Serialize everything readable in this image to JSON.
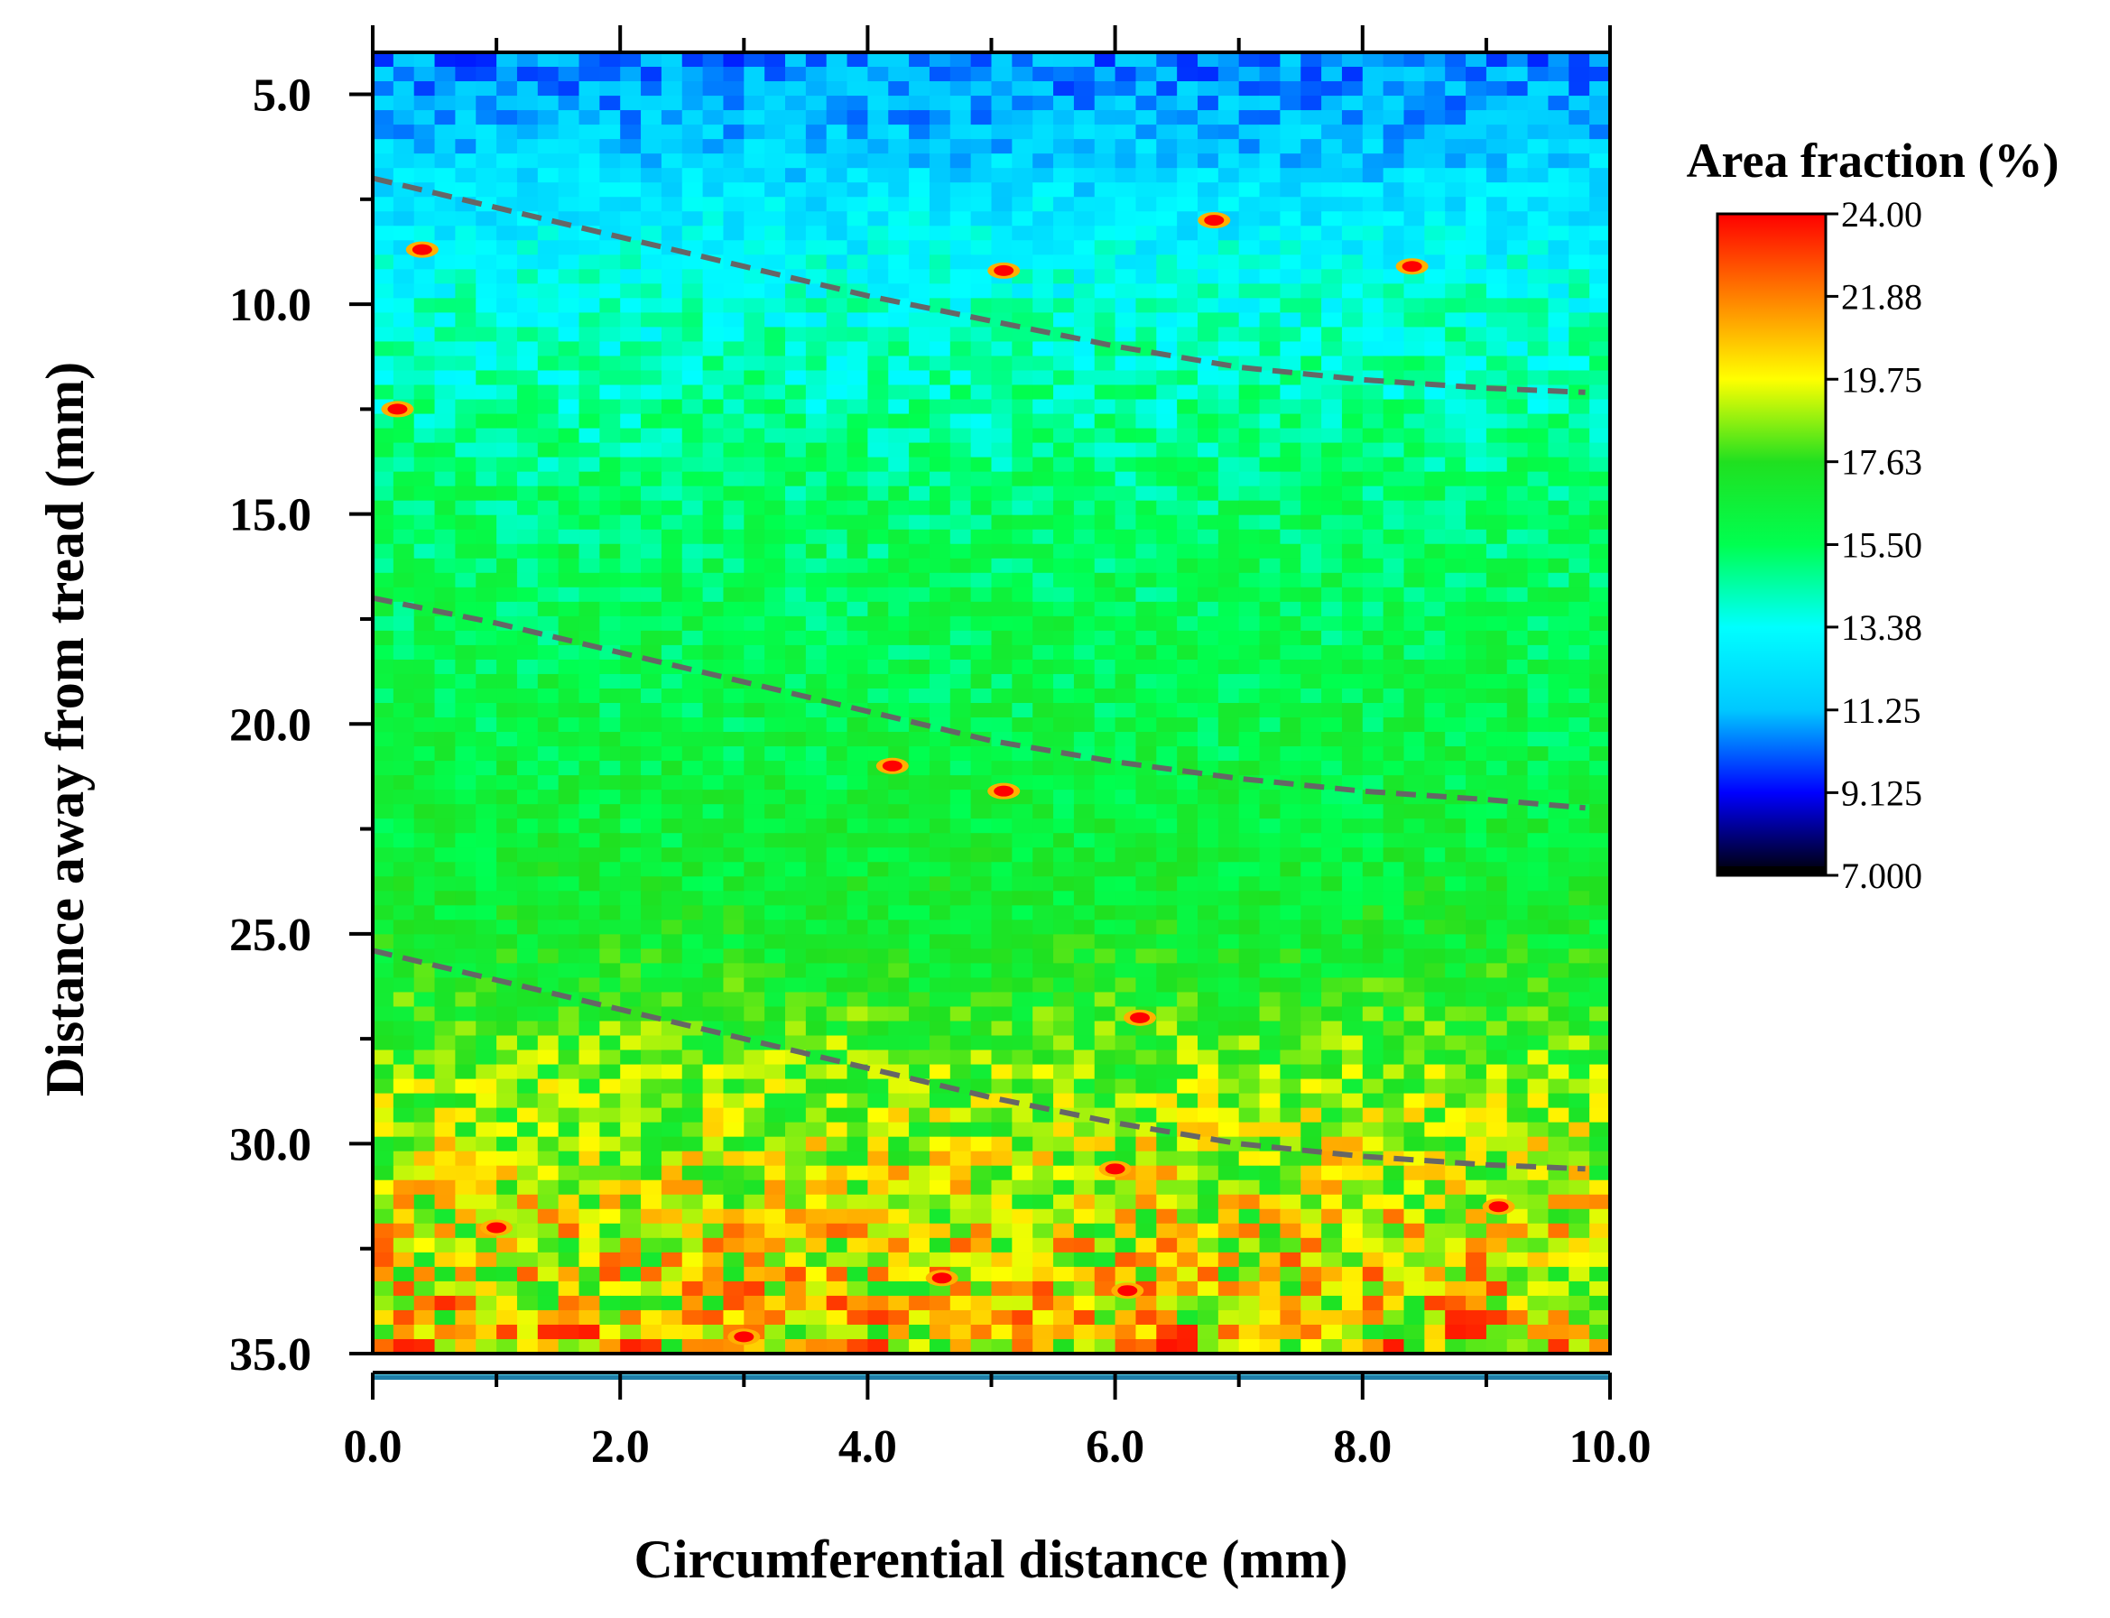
{
  "chart_data": {
    "type": "heatmap",
    "title": "",
    "xlabel": "Circumferential distance (mm)",
    "ylabel": "Distance away from tread (mm)",
    "xlim": [
      0.0,
      10.0
    ],
    "ylim": [
      35.0,
      4.0
    ],
    "y_axis_inverted": true,
    "x_ticks": [
      "0.0",
      "2.0",
      "4.0",
      "6.0",
      "8.0",
      "10.0"
    ],
    "y_ticks": [
      "5.0",
      "10.0",
      "15.0",
      "20.0",
      "25.0",
      "30.0",
      "35.0"
    ],
    "colorbar": {
      "title": "Area fraction (%)",
      "min": 7.0,
      "max": 24.0,
      "tick_labels": [
        "24.00",
        "21.88",
        "19.75",
        "17.63",
        "15.50",
        "13.38",
        "11.25",
        "9.125",
        "7.000"
      ],
      "colormap": [
        "#000000",
        "#0000ff",
        "#00c8ff",
        "#00ffff",
        "#00ff50",
        "#20e020",
        "#ffff00",
        "#ff8000",
        "#ff0000"
      ]
    },
    "mean_profile": {
      "depth_mm": [
        4,
        6,
        10,
        15,
        20,
        25,
        30,
        35
      ],
      "area_fraction_pct": [
        10.5,
        11.5,
        13.8,
        15.3,
        16.0,
        16.8,
        19.0,
        20.5
      ]
    },
    "boundary_lines": [
      {
        "style": "dashed",
        "color": "#666666",
        "x": [
          0,
          1,
          2,
          3,
          4,
          5,
          6,
          7,
          8,
          9,
          9.8
        ],
        "y": [
          7.0,
          7.7,
          8.4,
          9.1,
          9.8,
          10.4,
          11.0,
          11.5,
          11.8,
          12.0,
          12.1
        ]
      },
      {
        "style": "dashed",
        "color": "#666666",
        "x": [
          0,
          1,
          2,
          3,
          4,
          5,
          6,
          7,
          8,
          9,
          9.8
        ],
        "y": [
          17.0,
          17.6,
          18.3,
          19.0,
          19.7,
          20.4,
          20.9,
          21.3,
          21.6,
          21.8,
          22.0
        ]
      },
      {
        "style": "dashed",
        "color": "#666666",
        "x": [
          0,
          1,
          2,
          3,
          4,
          5,
          6,
          7,
          8,
          9,
          9.8
        ],
        "y": [
          25.4,
          26.1,
          26.8,
          27.5,
          28.2,
          28.9,
          29.5,
          30.0,
          30.3,
          30.5,
          30.6
        ]
      }
    ],
    "hot_spots": [
      {
        "x": 0.2,
        "y": 12.5
      },
      {
        "x": 6.8,
        "y": 8.0
      },
      {
        "x": 4.2,
        "y": 21.0
      },
      {
        "x": 5.1,
        "y": 21.6
      },
      {
        "x": 6.2,
        "y": 27.0
      },
      {
        "x": 6.0,
        "y": 30.6
      },
      {
        "x": 6.1,
        "y": 33.5
      },
      {
        "x": 3.0,
        "y": 34.6
      },
      {
        "x": 9.1,
        "y": 31.5
      },
      {
        "x": 8.4,
        "y": 9.1
      },
      {
        "x": 0.4,
        "y": 8.7
      },
      {
        "x": 5.1,
        "y": 9.2
      },
      {
        "x": 1.0,
        "y": 32.0
      },
      {
        "x": 4.6,
        "y": 33.2
      }
    ]
  }
}
